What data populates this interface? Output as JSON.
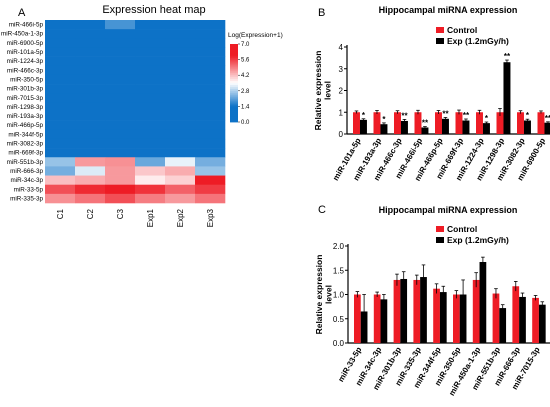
{
  "panels": {
    "a": "A",
    "b": "B",
    "c": "C"
  },
  "colors": {
    "control": "#ee1c25",
    "exp": "#000000",
    "heat_low": "#0d72c7",
    "heat_mid": "#ffffff",
    "heat_high": "#ee1c25"
  },
  "chart_data": [
    {
      "type": "heatmap",
      "title": "Expression heat map",
      "colorbar_title": "Log(Expression+1)",
      "colorbar_ticks": [
        7.0,
        5.6,
        4.2,
        2.8,
        1.4,
        0.0
      ],
      "colorbar_range": [
        0,
        7
      ],
      "columns": [
        "C1",
        "C2",
        "C3",
        "Exp1",
        "Exp2",
        "Exp3"
      ],
      "rows": [
        "miR-466i-5p",
        "miR-450a-1-3p",
        "miR-6900-5p",
        "miR-101a-5p",
        "miR-1224-3p",
        "miR-466c-3p",
        "miR-350-5p",
        "miR-301b-3p",
        "miR-7015-3p",
        "miR-1298-3p",
        "miR-193a-3p",
        "miR-466p-5p",
        "miR-344f-5p",
        "miR-3082-3p",
        "miR-669f-3p",
        "miR-551b-3p",
        "miR-666-3p",
        "miR-34c-3p",
        "miR-33-5p",
        "miR-335-3p"
      ],
      "values": [
        [
          0.5,
          0.8,
          1.9,
          0.6,
          1.1,
          0.7
        ],
        [
          0.3,
          0.4,
          0.9,
          0.4,
          0.6,
          0.5
        ],
        [
          0.3,
          0.3,
          0.3,
          0.4,
          0.4,
          0.3
        ],
        [
          0.4,
          0.4,
          0.4,
          0.5,
          0.6,
          0.4
        ],
        [
          0.3,
          0.3,
          0.3,
          0.4,
          0.3,
          0.3
        ],
        [
          0.3,
          0.4,
          0.4,
          0.4,
          0.7,
          0.3
        ],
        [
          0.3,
          0.3,
          0.4,
          0.4,
          0.3,
          0.3
        ],
        [
          0.3,
          0.3,
          0.3,
          0.3,
          0.3,
          0.3
        ],
        [
          0.3,
          0.3,
          0.3,
          0.3,
          0.3,
          0.3
        ],
        [
          0.3,
          0.3,
          0.3,
          0.3,
          0.3,
          0.3
        ],
        [
          0.3,
          0.3,
          0.3,
          0.3,
          0.3,
          0.3
        ],
        [
          0.3,
          0.3,
          0.3,
          0.3,
          0.3,
          0.3
        ],
        [
          0.3,
          0.3,
          0.3,
          0.3,
          0.3,
          0.3
        ],
        [
          0.3,
          0.3,
          0.3,
          0.3,
          0.3,
          0.3
        ],
        [
          0.3,
          0.3,
          0.4,
          0.3,
          0.3,
          0.3
        ],
        [
          2.6,
          4.6,
          4.7,
          2.2,
          3.3,
          2.3
        ],
        [
          2.3,
          3.2,
          4.6,
          4.1,
          4.4,
          2.6
        ],
        [
          4.2,
          4.4,
          4.6,
          3.7,
          4.0,
          6.6
        ],
        [
          5.4,
          5.8,
          6.3,
          5.7,
          5.2,
          5.6
        ],
        [
          4.7,
          5.0,
          5.4,
          4.9,
          4.6,
          5.0
        ]
      ]
    },
    {
      "type": "bar",
      "title": "Hippocampal miRNA expression",
      "ylabel": "Relative expression\nlevel",
      "ylim": [
        0,
        4
      ],
      "yticks": [
        "0",
        "1",
        "2",
        "3",
        "4"
      ],
      "categories": [
        "miR-101a-5p",
        "miR-193a-3p",
        "miR-466c-3p",
        "miR-466i-5p",
        "miR-466p-5p",
        "miR-669f-3p",
        "miR-1224-3p",
        "miR-1298-3p",
        "miR-3082-3p",
        "miR-6900-5p"
      ],
      "series": [
        {
          "name": "Control",
          "values": [
            1.0,
            1.0,
            1.0,
            1.0,
            1.0,
            1.0,
            1.0,
            1.0,
            1.0,
            1.0
          ],
          "errors": [
            0.06,
            0.08,
            0.07,
            0.09,
            0.08,
            0.1,
            0.09,
            0.17,
            0.07,
            0.06
          ]
        },
        {
          "name": "Exp (1.2mGy/h)",
          "values": [
            0.65,
            0.45,
            0.6,
            0.3,
            0.7,
            0.62,
            0.5,
            3.3,
            0.62,
            0.52
          ],
          "errors": [
            0.05,
            0.06,
            0.07,
            0.04,
            0.06,
            0.07,
            0.05,
            0.1,
            0.06,
            0.04
          ]
        }
      ],
      "significance": [
        "*",
        "*",
        "**",
        "**",
        "**",
        "**",
        "*",
        "**",
        "*",
        "**"
      ]
    },
    {
      "type": "bar",
      "title": "Hippocampal miRNA expression",
      "ylabel": "Relative expression\nlevel",
      "ylim": [
        0,
        2.0
      ],
      "yticks": [
        "0.0",
        "0.5",
        "1.0",
        "1.5",
        "2.0"
      ],
      "categories": [
        "miR-33-5p",
        "miR-34c-3p",
        "miR-301b-3p",
        "miR-335-3p",
        "miR-344f-5p",
        "miR-350-5p",
        "miR-450a-1-3p",
        "miR-551b-3p",
        "miR-666-3p",
        "miR-7015-3p"
      ],
      "series": [
        {
          "name": "Control",
          "values": [
            1.0,
            1.0,
            1.3,
            1.3,
            1.12,
            1.0,
            1.3,
            1.02,
            1.17,
            0.93
          ],
          "errors": [
            0.06,
            0.05,
            0.12,
            0.1,
            0.1,
            0.08,
            0.15,
            0.1,
            0.1,
            0.05
          ]
        },
        {
          "name": "Exp (1.2mGy/h)",
          "values": [
            0.65,
            0.9,
            1.32,
            1.36,
            1.05,
            1.0,
            1.67,
            0.72,
            0.95,
            0.79
          ],
          "errors": [
            0.35,
            0.1,
            0.15,
            0.25,
            0.12,
            0.3,
            0.1,
            0.07,
            0.08,
            0.06
          ]
        }
      ]
    }
  ]
}
